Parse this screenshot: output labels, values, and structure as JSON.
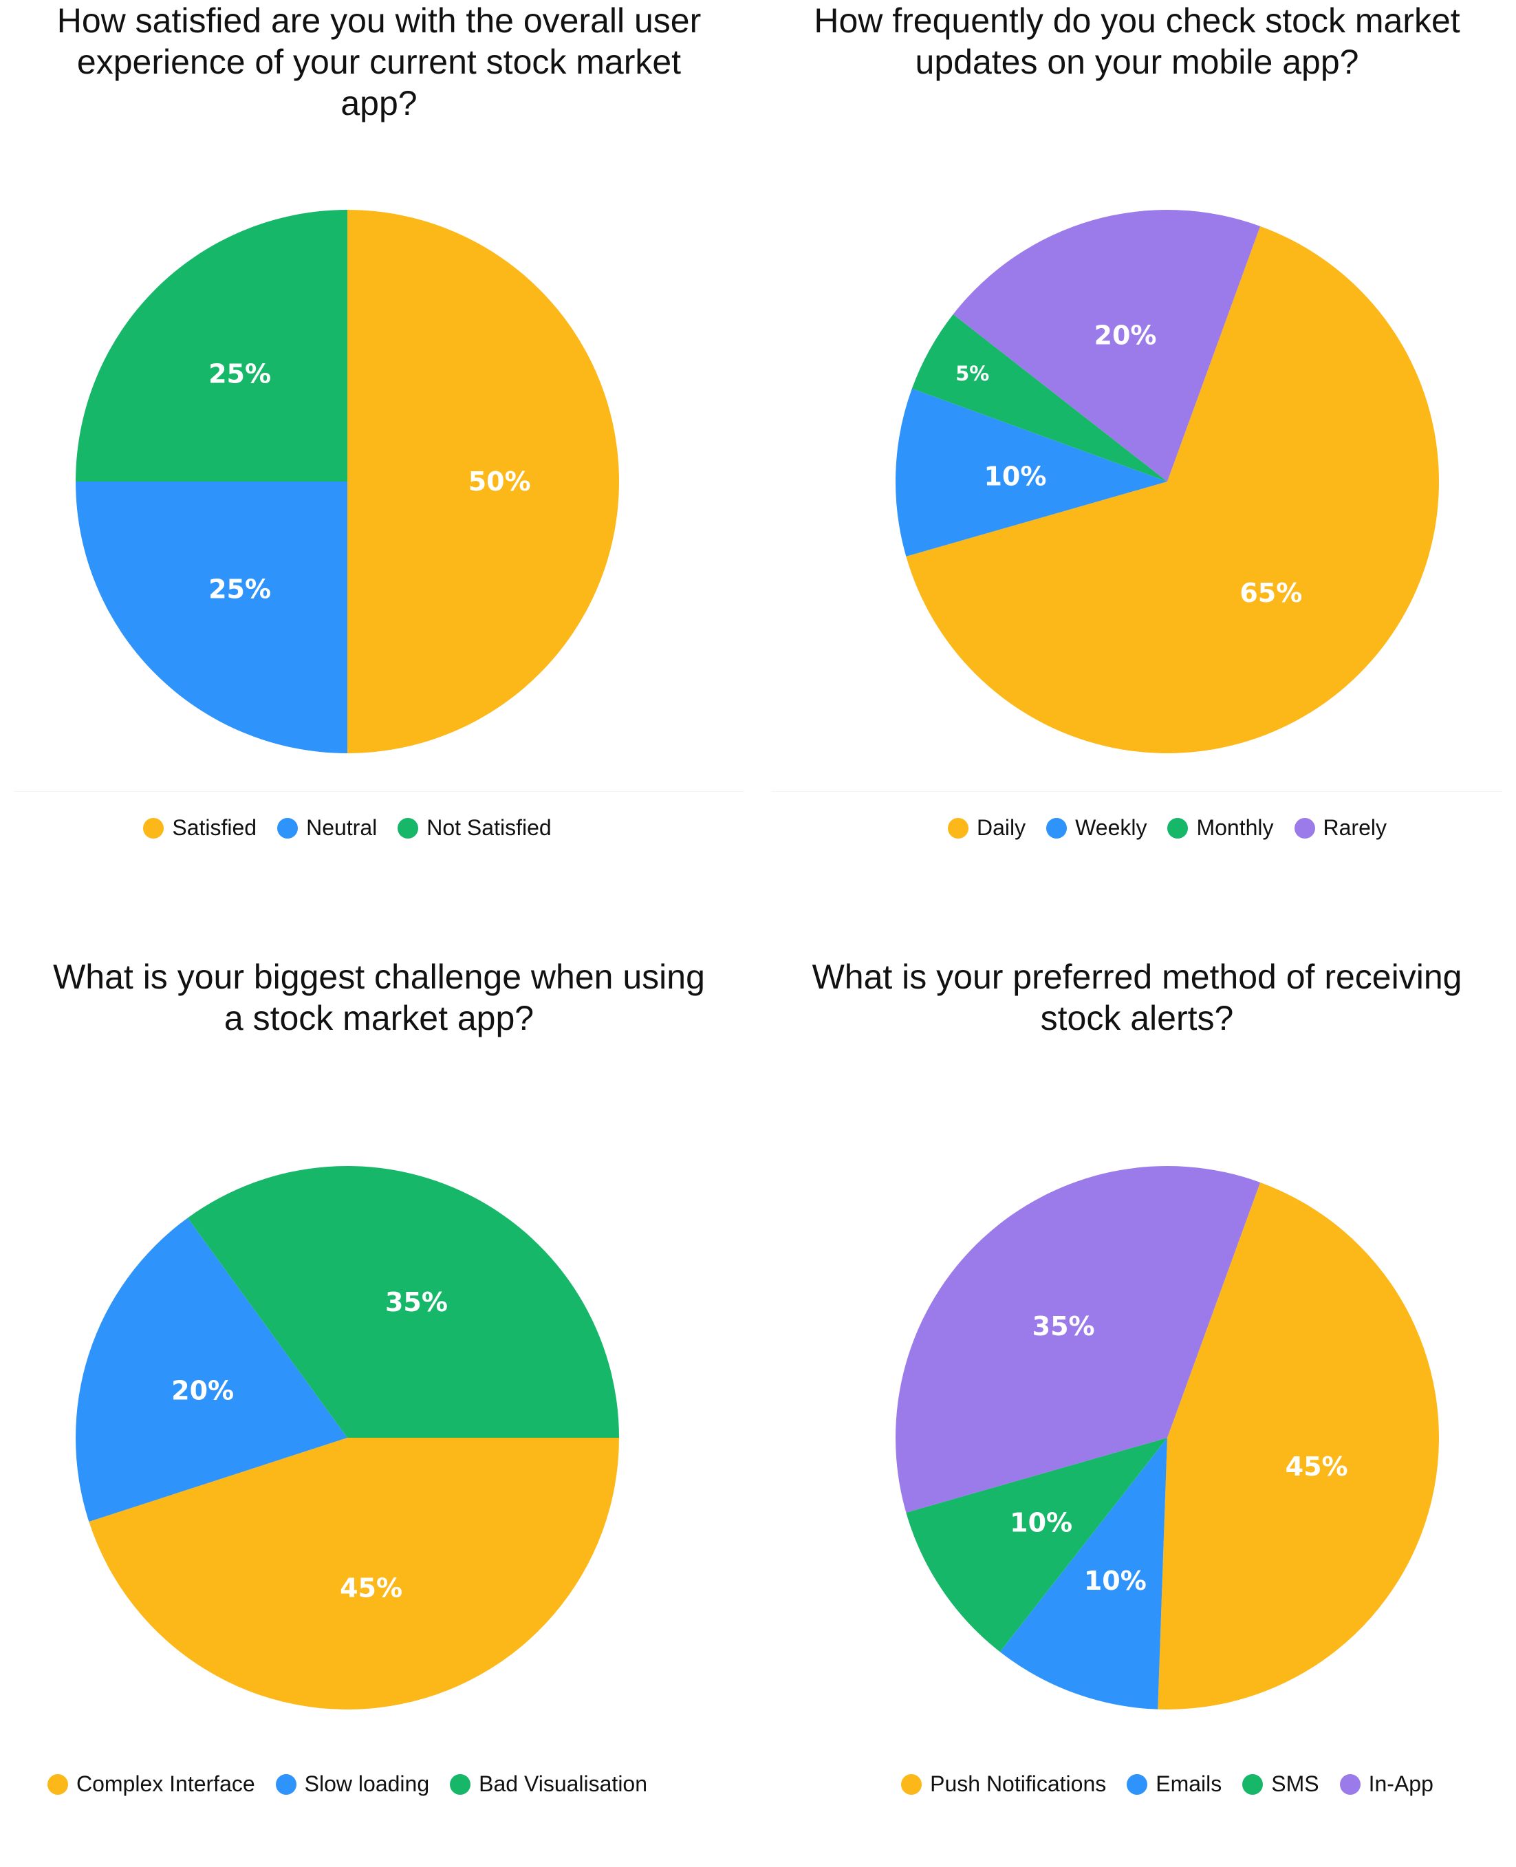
{
  "colors": {
    "yellow": "#FCB718",
    "blue": "#2E93FA",
    "green": "#17B76A",
    "purple": "#9B7AEA",
    "label": "#FFFFFF",
    "text": "#111111"
  },
  "chart_data": [
    {
      "type": "pie",
      "title": "How satisfied are you with the overall user experience of your current stock market app?",
      "title_lines": [
        "How satisfied are you with the overall user",
        "experience of your current stock market",
        "app?"
      ],
      "legend_position": "bottom",
      "slices": [
        {
          "label": "Satisfied",
          "value": 50,
          "display": "50%",
          "color": "#FCB718"
        },
        {
          "label": "Neutral",
          "value": 25,
          "display": "25%",
          "color": "#2E93FA"
        },
        {
          "label": "Not Satisfied",
          "value": 25,
          "display": "25%",
          "color": "#17B76A"
        }
      ]
    },
    {
      "type": "pie",
      "title": "How frequently do you check stock market updates on your mobile app?",
      "title_lines": [
        "How frequently do you check stock market",
        "updates on your mobile app?"
      ],
      "legend_position": "bottom",
      "slices": [
        {
          "label": "Daily",
          "value": 65,
          "display": "65%",
          "color": "#FCB718"
        },
        {
          "label": "Weekly",
          "value": 10,
          "display": "10%",
          "color": "#2E93FA"
        },
        {
          "label": "Monthly",
          "value": 5,
          "display": "5%",
          "color": "#17B76A"
        },
        {
          "label": "Rarely",
          "value": 20,
          "display": "20%",
          "color": "#9B7AEA"
        }
      ]
    },
    {
      "type": "pie",
      "title": "What is your biggest challenge when using a stock market app?",
      "title_lines": [
        "What is your biggest challenge when using",
        "a stock market app?"
      ],
      "legend_position": "bottom",
      "slices": [
        {
          "label": "Complex Interface",
          "value": 45,
          "display": "45%",
          "color": "#FCB718"
        },
        {
          "label": "Slow loading",
          "value": 20,
          "display": "20%",
          "color": "#2E93FA"
        },
        {
          "label": "Bad Visualisation",
          "value": 35,
          "display": "35%",
          "color": "#17B76A"
        }
      ]
    },
    {
      "type": "pie",
      "title": "What is your preferred method of receiving stock alerts?",
      "title_lines": [
        "What is your preferred method of receiving",
        "stock alerts?"
      ],
      "legend_position": "bottom",
      "slices": [
        {
          "label": "Push Notifications",
          "value": 45,
          "display": "45%",
          "color": "#FCB718"
        },
        {
          "label": "Emails",
          "value": 10,
          "display": "10%",
          "color": "#2E93FA"
        },
        {
          "label": "SMS",
          "value": 10,
          "display": "10%",
          "color": "#17B76A"
        },
        {
          "label": "In-App",
          "value": 35,
          "display": "35%",
          "color": "#9B7AEA"
        }
      ]
    }
  ]
}
